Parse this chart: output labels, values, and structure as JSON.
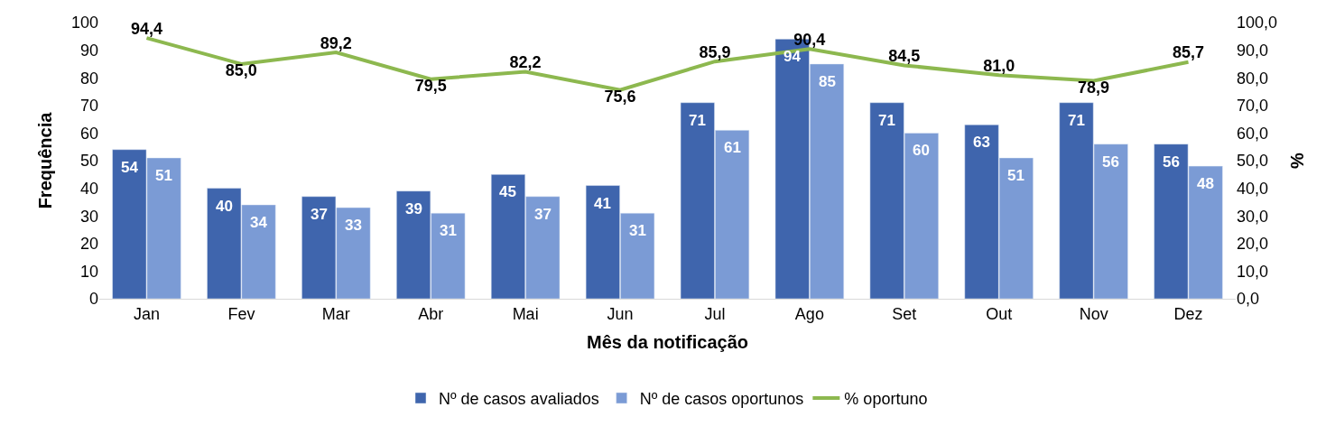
{
  "chart_data": {
    "type": "bar",
    "xlabel": "Mês da notificação",
    "ylabel": "Frequência",
    "y2label": "%",
    "categories": [
      "Jan",
      "Fev",
      "Mar",
      "Abr",
      "Mai",
      "Jun",
      "Jul",
      "Ago",
      "Set",
      "Out",
      "Nov",
      "Dez"
    ],
    "series": [
      {
        "name": "Nº de casos avaliados",
        "color": "#3f65ad",
        "values": [
          54,
          40,
          37,
          39,
          45,
          41,
          71,
          94,
          71,
          63,
          71,
          56
        ],
        "value_labels": [
          "54",
          "40",
          "37",
          "39",
          "45",
          "41",
          "71",
          "94",
          "71",
          "63",
          "71",
          "56"
        ]
      },
      {
        "name": "Nº de casos oportunos",
        "color": "#7b9bd5",
        "values": [
          51,
          34,
          33,
          31,
          37,
          31,
          61,
          85,
          60,
          51,
          56,
          48
        ],
        "value_labels": [
          "51",
          "34",
          "33",
          "31",
          "37",
          "31",
          "61",
          "85",
          "60",
          "51",
          "56",
          "48"
        ]
      },
      {
        "name": "% oportuno",
        "type": "line",
        "axis": "y2",
        "color": "#8db84f",
        "marker": "none",
        "line_style": "solid",
        "values": [
          94.4,
          85.0,
          89.2,
          79.5,
          82.2,
          75.6,
          85.9,
          90.4,
          84.5,
          81.0,
          78.9,
          85.7
        ],
        "value_labels": [
          "94,4",
          "85,0",
          "89,2",
          "79,5",
          "82,2",
          "75,6",
          "85,9",
          "90,4",
          "84,5",
          "81,0",
          "78,9",
          "85,7"
        ]
      }
    ],
    "ylim": [
      0,
      100
    ],
    "yticks": [
      0,
      10,
      20,
      30,
      40,
      50,
      60,
      70,
      80,
      90,
      100
    ],
    "y2lim": [
      0,
      100
    ],
    "y2ticks": [
      {
        "value": 0,
        "label": "0,0"
      },
      {
        "value": 10,
        "label": "10,0"
      },
      {
        "value": 20,
        "label": "20,0"
      },
      {
        "value": 30,
        "label": "30,0"
      },
      {
        "value": 40,
        "label": "40,0"
      },
      {
        "value": 50,
        "label": "50,0"
      },
      {
        "value": 60,
        "label": "60,0"
      },
      {
        "value": 70,
        "label": "70,0"
      },
      {
        "value": 80,
        "label": "80,0"
      },
      {
        "value": 90,
        "label": "90,0"
      },
      {
        "value": 100,
        "label": "100,0"
      }
    ],
    "legend": "bottom"
  }
}
